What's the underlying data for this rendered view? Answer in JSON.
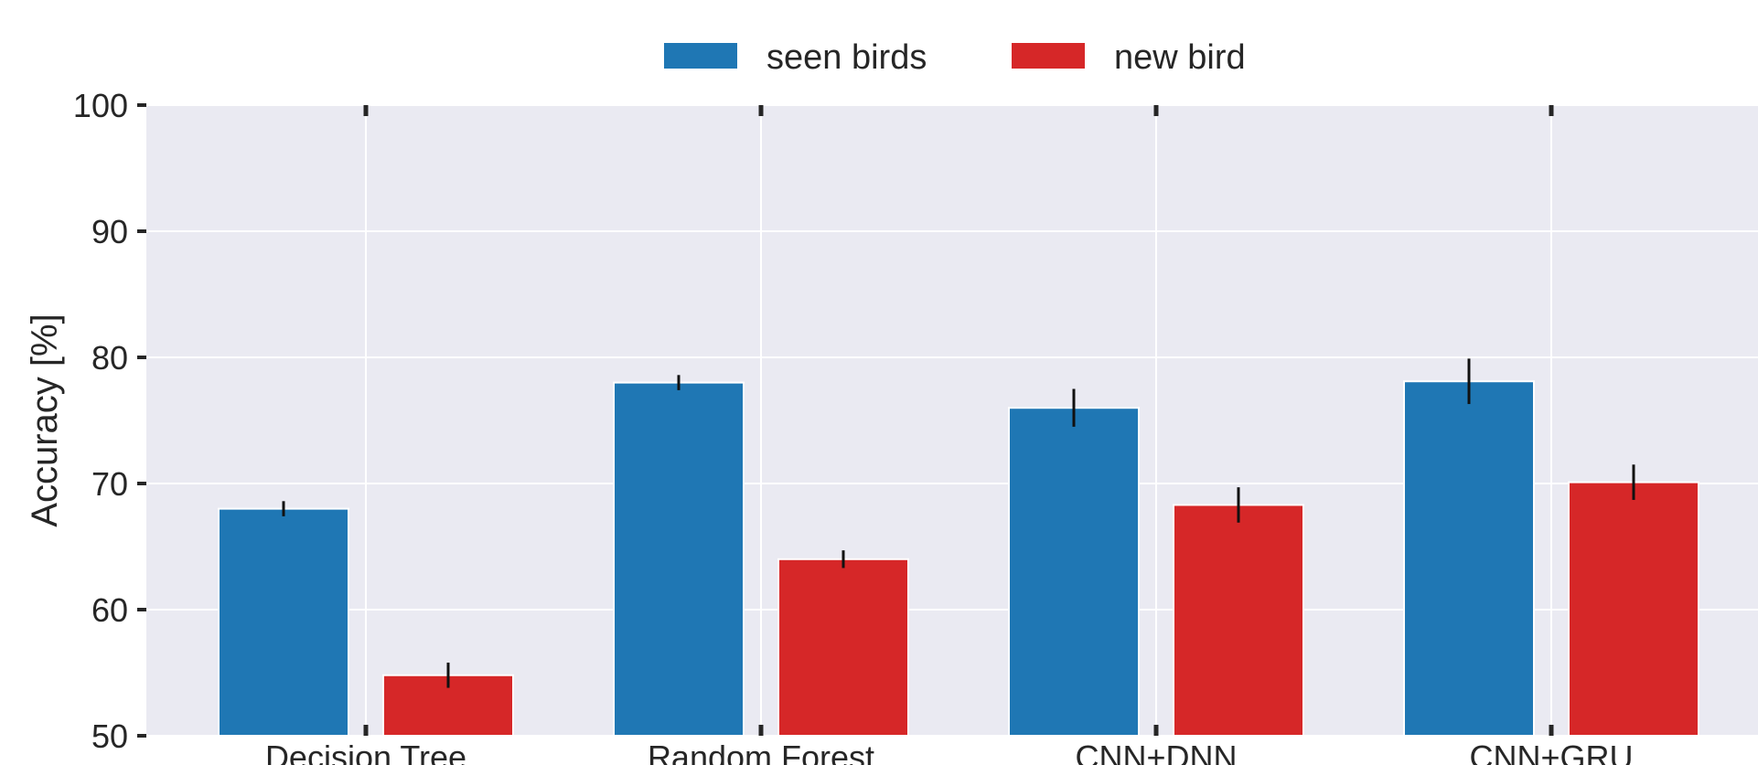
{
  "chart_data": {
    "type": "bar",
    "categories": [
      "Decision Tree",
      "Random Forest",
      "CNN+DNN",
      "CNN+GRU"
    ],
    "series": [
      {
        "name": "seen birds",
        "color": "#1f77b4",
        "values": [
          68.0,
          78.0,
          76.0,
          78.1
        ],
        "errors": [
          0.6,
          0.6,
          1.5,
          1.8
        ]
      },
      {
        "name": "new bird",
        "color": "#d62728",
        "values": [
          54.8,
          64.0,
          68.3,
          70.1
        ],
        "errors": [
          1.0,
          0.7,
          1.4,
          1.4
        ]
      }
    ],
    "title": "",
    "xlabel": "",
    "ylabel": "Accuracy [%]",
    "ylim": [
      50,
      100
    ],
    "yticks": [
      50,
      60,
      70,
      80,
      90,
      100
    ],
    "grid": true,
    "legend_position": "top-center",
    "plot_background": "#eaeaf2"
  }
}
